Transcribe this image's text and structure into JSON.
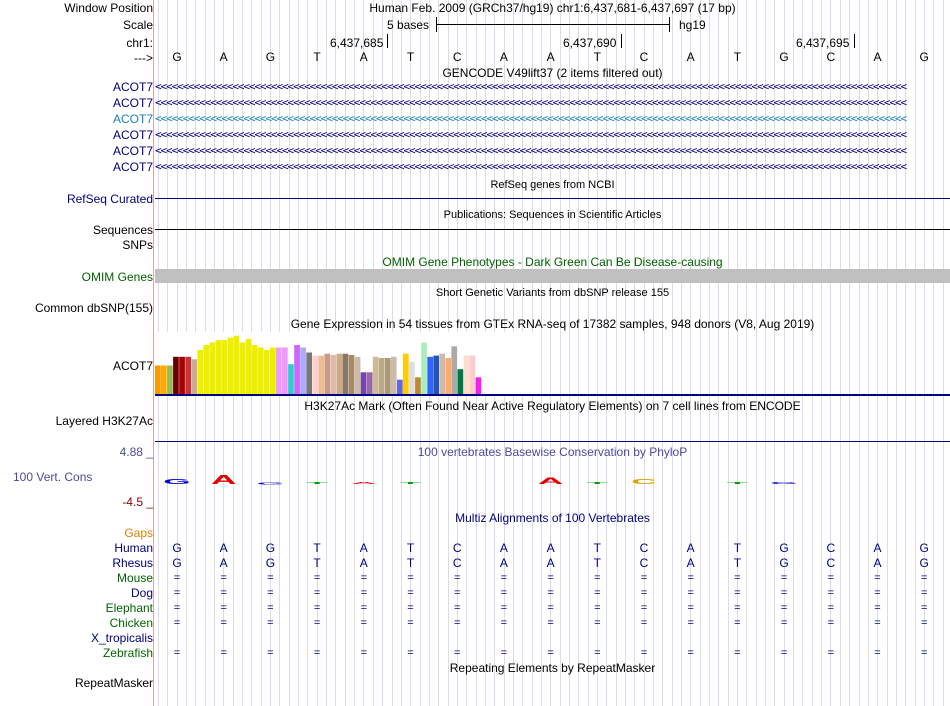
{
  "header": {
    "window_position_label": "Window Position",
    "scale_label": "Scale",
    "chrom_label": "chr1:",
    "arrow_label": "--->",
    "title": "Human Feb. 2009 (GRCh37/hg19)   chr1:6,437,681-6,437,697 (17 bp)",
    "scale_text": "5 bases",
    "assembly": "hg19",
    "positions": [
      "6,437,685",
      "6,437,690",
      "6,437,695"
    ]
  },
  "sequence": [
    "G",
    "A",
    "G",
    "T",
    "A",
    "T",
    "C",
    "A",
    "A",
    "T",
    "C",
    "A",
    "T",
    "G",
    "C",
    "A",
    "G"
  ],
  "gencode": {
    "title": "GENCODE V49lift37 (2 items filtered out)",
    "items": [
      "ACOT7",
      "ACOT7",
      "ACOT7",
      "ACOT7",
      "ACOT7",
      "ACOT7"
    ],
    "chevrons": "<<<<<<<<<<<<<<<<<<<<<<<<<<<<<<<<<<<<<<<<<<<<<<<<<<<<<<<<<<<<<<<<<<<<<<<<<<<<<<<<<<<<<<<<<<<<<<<<<<<<<<<<<<<<<<<<<<<<<<<<<<<<<<<<<<<<<<<<"
  },
  "refseq": {
    "label": "RefSeq Curated",
    "title": "RefSeq genes from NCBI"
  },
  "publications": {
    "title": "Publications: Sequences in Scientific Articles",
    "label": "Sequences"
  },
  "snps": {
    "label": "SNPs"
  },
  "omim": {
    "title": "OMIM Gene Phenotypes - Dark Green Can Be Disease-causing",
    "label": "OMIM Genes"
  },
  "dbsnp": {
    "title": "Short Genetic Variants from dbSNP release 155",
    "label": "Common dbSNP(155)"
  },
  "gtex": {
    "title": "Gene Expression in 54 tissues from GTEx RNA-seq of 17382 samples, 948 donors (V8, Aug 2019)",
    "label": "ACOT7",
    "bars": [
      {
        "v": 0.46,
        "c": "#ff9900"
      },
      {
        "v": 0.46,
        "c": "#ffaa00"
      },
      {
        "v": 0.46,
        "c": "#99bb55"
      },
      {
        "v": 0.6,
        "c": "#660000"
      },
      {
        "v": 0.6,
        "c": "#aa0000"
      },
      {
        "v": 0.6,
        "c": "#cc3333"
      },
      {
        "v": 0.56,
        "c": "#ccaa99"
      },
      {
        "v": 0.71,
        "c": "#eeee00"
      },
      {
        "v": 0.79,
        "c": "#eeee00"
      },
      {
        "v": 0.83,
        "c": "#eeee00"
      },
      {
        "v": 0.87,
        "c": "#eeee00"
      },
      {
        "v": 0.87,
        "c": "#eeee00"
      },
      {
        "v": 0.91,
        "c": "#eeee00"
      },
      {
        "v": 0.94,
        "c": "#eeee00"
      },
      {
        "v": 0.83,
        "c": "#eeee00"
      },
      {
        "v": 0.89,
        "c": "#eeee00"
      },
      {
        "v": 0.79,
        "c": "#eeee00"
      },
      {
        "v": 0.75,
        "c": "#eeee00"
      },
      {
        "v": 0.71,
        "c": "#eeee00"
      },
      {
        "v": 0.75,
        "c": "#eeee00"
      },
      {
        "v": 0.75,
        "c": "#ee99ff"
      },
      {
        "v": 0.75,
        "c": "#ee99ff"
      },
      {
        "v": 0.48,
        "c": "#33cccc"
      },
      {
        "v": 0.79,
        "c": "#cc66ff"
      },
      {
        "v": 0.75,
        "c": "#aaaaff"
      },
      {
        "v": 0.67,
        "c": "#777777"
      },
      {
        "v": 0.62,
        "c": "#ffd1cc"
      },
      {
        "v": 0.62,
        "c": "#eebb99"
      },
      {
        "v": 0.65,
        "c": "#cc9988"
      },
      {
        "v": 0.63,
        "c": "#ddbbaa"
      },
      {
        "v": 0.65,
        "c": "#ccaa88"
      },
      {
        "v": 0.65,
        "c": "#887766"
      },
      {
        "v": 0.63,
        "c": "#aa8866"
      },
      {
        "v": 0.6,
        "c": "#ccbbaa"
      },
      {
        "v": 0.35,
        "c": "#7744aa"
      },
      {
        "v": 0.35,
        "c": "#9966aa"
      },
      {
        "v": 0.6,
        "c": "#ccbb99"
      },
      {
        "v": 0.58,
        "c": "#bbaa88"
      },
      {
        "v": 0.58,
        "c": "#aa9977"
      },
      {
        "v": 0.6,
        "c": "#ccbbaa"
      },
      {
        "v": 0.23,
        "c": "#6666dd"
      },
      {
        "v": 0.65,
        "c": "#ffcc00"
      },
      {
        "v": 0.52,
        "c": "#dddddd"
      },
      {
        "v": 0.27,
        "c": "#bb8833"
      },
      {
        "v": 0.83,
        "c": "#aaeebb"
      },
      {
        "v": 0.6,
        "c": "#3366ff"
      },
      {
        "v": 0.62,
        "c": "#2255bb"
      },
      {
        "v": 0.65,
        "c": "#ccbbaa"
      },
      {
        "v": 0.58,
        "c": "#ffaa66"
      },
      {
        "v": 0.77,
        "c": "#aaaaaa"
      },
      {
        "v": 0.4,
        "c": "#007744"
      },
      {
        "v": 0.62,
        "c": "#ffddcc"
      },
      {
        "v": 0.62,
        "c": "#ffcccc"
      },
      {
        "v": 0.27,
        "c": "#ee22ee"
      }
    ]
  },
  "h3k27ac": {
    "title": "H3K27Ac Mark (Often Found Near Active Regulatory Elements) on 7 cell lines from ENCODE",
    "label": "Layered H3K27Ac"
  },
  "cons": {
    "title": "100 vertebrates Basewise Conservation by PhyloP",
    "label": "100 Vert. Cons",
    "max": "4.88 _",
    "min": "-4.5 _",
    "heights": [
      0.35,
      0.6,
      -0.15,
      0.15,
      0.12,
      0.12,
      0.0,
      0.0,
      0.45,
      0.12,
      0.35,
      0.0,
      0.1,
      0.05,
      0.0,
      0.0,
      0.0
    ]
  },
  "multiz": {
    "title": "Multiz Alignments of 100 Vertebrates",
    "gaps_label": "Gaps",
    "species": [
      {
        "name": "Human",
        "row": "GAGTATCAATCATGCAG",
        "color": "#000080"
      },
      {
        "name": "Rhesus",
        "row": "GAGTATCAATCATGCAG",
        "color": "#000080"
      },
      {
        "name": "Mouse",
        "row": "=================",
        "color": "#006400"
      },
      {
        "name": "Dog",
        "row": "=================",
        "color": "#000080"
      },
      {
        "name": "Elephant",
        "row": "=================",
        "color": "#006400"
      },
      {
        "name": "Chicken",
        "row": "=================",
        "color": "#006400"
      },
      {
        "name": "X_tropicalis",
        "row": "",
        "color": "#000080"
      },
      {
        "name": "Zebrafish",
        "row": "=================",
        "color": "#006400"
      }
    ]
  },
  "repeatmasker": {
    "title": "Repeating Elements by RepeatMasker",
    "label": "RepeatMasker"
  },
  "colors": {
    "navy": "#000080",
    "green": "#006400",
    "accent": "#0a4f9a",
    "omim_bar": "#c0c0c0",
    "cons_label": "#4a4a9c"
  }
}
